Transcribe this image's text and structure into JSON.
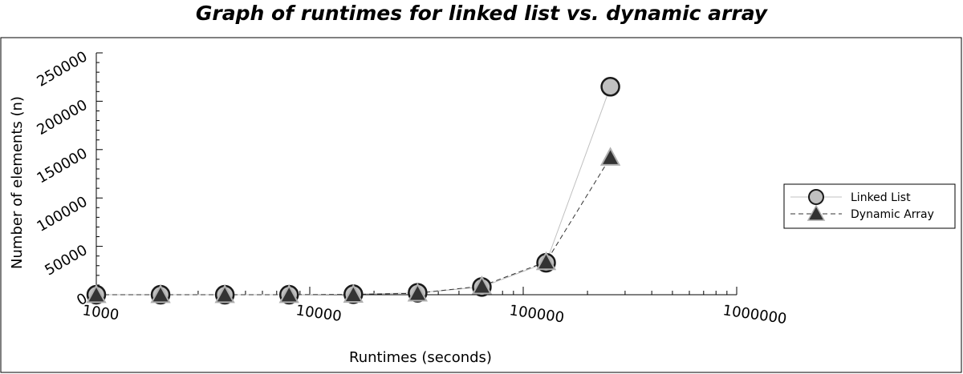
{
  "chart_data": {
    "type": "line",
    "title": "Graph of runtimes for linked list vs. dynamic array",
    "xlabel": "Runtimes (seconds)",
    "ylabel": "Number of elements (n)",
    "x_scale": "log",
    "xlim": [
      1000,
      1000000
    ],
    "ylim": [
      0,
      250000
    ],
    "x_tick_labels": [
      "1000",
      "10000",
      "100000",
      "1000000"
    ],
    "y_tick_labels": [
      "0",
      "50000",
      "100000",
      "150000",
      "200000",
      "250000"
    ],
    "grid": false,
    "legend_position": "right",
    "series": [
      {
        "name": "Linked List",
        "marker": "circle",
        "line_style": "solid",
        "line_color": "#c0c0c0",
        "marker_fill": "#c0c0c0",
        "marker_stroke": "#1a1a1a",
        "x": [
          1000,
          2000,
          4000,
          8000,
          16000,
          32000,
          64000,
          128000,
          256000
        ],
        "y": [
          0,
          0,
          0,
          0,
          500,
          2000,
          8000,
          33000,
          215000
        ]
      },
      {
        "name": "Dynamic Array",
        "marker": "triangle",
        "line_style": "dashed",
        "line_color": "#333333",
        "marker_fill": "#333333",
        "marker_stroke": "#b0b0b0",
        "x": [
          1000,
          2000,
          4000,
          8000,
          16000,
          32000,
          64000,
          128000,
          256000
        ],
        "y": [
          0,
          0,
          0,
          0,
          300,
          1500,
          9000,
          34000,
          142000
        ]
      }
    ]
  }
}
